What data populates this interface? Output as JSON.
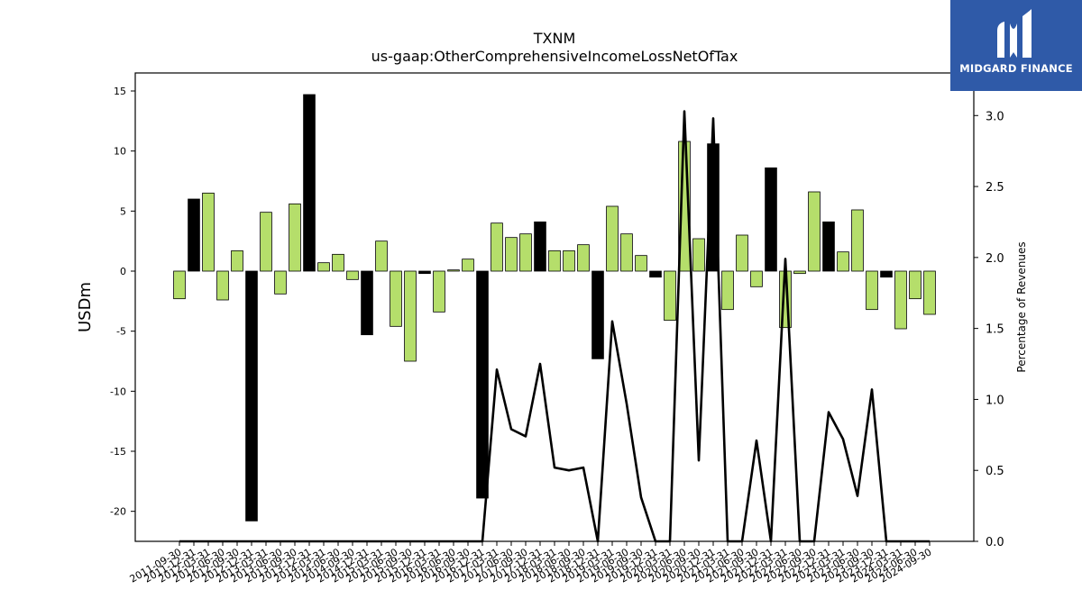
{
  "chart_data": {
    "type": "bar+line",
    "title": "TXNM",
    "subtitle": "us-gaap:OtherComprehensiveIncomeLossNetOfTax",
    "ylabel": "USDm",
    "y2label": "Percentage of Revenues",
    "ylim": [
      -22.5,
      16.5
    ],
    "y2lim": [
      0.0,
      3.3
    ],
    "yticks": [
      -20,
      -15,
      -10,
      -5,
      0,
      5,
      10,
      15
    ],
    "y2ticks": [
      0.0,
      0.5,
      1.0,
      1.5,
      2.0,
      2.5,
      3.0
    ],
    "categories": [
      "2011-09-30",
      "2011-12-31",
      "2012-03-31",
      "2012-06-30",
      "2012-09-30",
      "2012-12-31",
      "2013-03-31",
      "2013-06-30",
      "2013-09-30",
      "2013-12-31",
      "2014-03-31",
      "2014-06-30",
      "2014-09-30",
      "2014-12-31",
      "2015-03-31",
      "2015-06-30",
      "2015-09-30",
      "2015-12-31",
      "2016-03-31",
      "2016-06-30",
      "2016-09-30",
      "2016-12-31",
      "2017-03-31",
      "2017-06-30",
      "2017-09-30",
      "2017-12-31",
      "2018-03-31",
      "2018-06-30",
      "2018-09-30",
      "2018-12-31",
      "2019-03-31",
      "2019-06-30",
      "2019-09-30",
      "2019-12-31",
      "2020-03-31",
      "2020-06-30",
      "2020-09-30",
      "2020-12-31",
      "2021-03-31",
      "2021-06-30",
      "2021-09-30",
      "2021-12-31",
      "2022-03-31",
      "2022-06-30",
      "2022-09-30",
      "2022-12-31",
      "2023-03-31",
      "2023-06-30",
      "2023-09-30",
      "2023-12-31",
      "2024-03-31",
      "2024-06-30",
      "2024-09-30"
    ],
    "series": [
      {
        "kind": "bar",
        "values": [
          -2.3,
          6.0,
          6.5,
          -2.4,
          1.7,
          -20.8,
          4.9,
          -1.9,
          5.6,
          14.7,
          0.7,
          1.4,
          -0.7,
          -5.3,
          2.5,
          -4.6,
          -7.5,
          -0.2,
          -3.4,
          0.1,
          1.0,
          -18.9,
          4.0,
          2.8,
          3.1,
          4.1,
          1.7,
          1.7,
          2.2,
          -7.3,
          5.4,
          3.1,
          1.3,
          -0.5,
          -4.1,
          10.8,
          2.7,
          10.6,
          -3.2,
          3.0,
          -1.3,
          8.6,
          -4.7,
          -0.2,
          6.6,
          4.1,
          1.6,
          5.1,
          -3.2,
          -0.5,
          -4.8,
          -2.3,
          -3.6
        ],
        "highlight": [
          false,
          true,
          false,
          false,
          false,
          true,
          false,
          false,
          false,
          true,
          false,
          false,
          false,
          true,
          false,
          false,
          false,
          true,
          false,
          false,
          false,
          true,
          false,
          false,
          false,
          true,
          false,
          false,
          false,
          true,
          false,
          false,
          false,
          true,
          false,
          false,
          false,
          true,
          false,
          false,
          false,
          true,
          false,
          false,
          false,
          true,
          false,
          false,
          false,
          true,
          false,
          false,
          false
        ]
      },
      {
        "kind": "line",
        "axis": "y2",
        "values": [
          0,
          0,
          0,
          0,
          0,
          0,
          0,
          0,
          0,
          0,
          0,
          0,
          0,
          0,
          0,
          0,
          0,
          0,
          0,
          0,
          0,
          0,
          1.21,
          0.79,
          0.74,
          1.25,
          0.52,
          0.5,
          0.52,
          0,
          1.55,
          0.97,
          0.31,
          0,
          0,
          3.03,
          0.57,
          2.98,
          0,
          0,
          0.71,
          0,
          1.99,
          0,
          0,
          0.91,
          0.72,
          0.32,
          1.07,
          0,
          0,
          0,
          0
        ]
      }
    ],
    "colors": {
      "bar": "#b5de6b",
      "bar_highlight": "#000000",
      "line": "#000000",
      "logo_bg": "#2f5aa8"
    },
    "grid": false
  },
  "logo": {
    "text": "MIDGARD FINANCE",
    "icon": "midgard-logo-icon"
  }
}
